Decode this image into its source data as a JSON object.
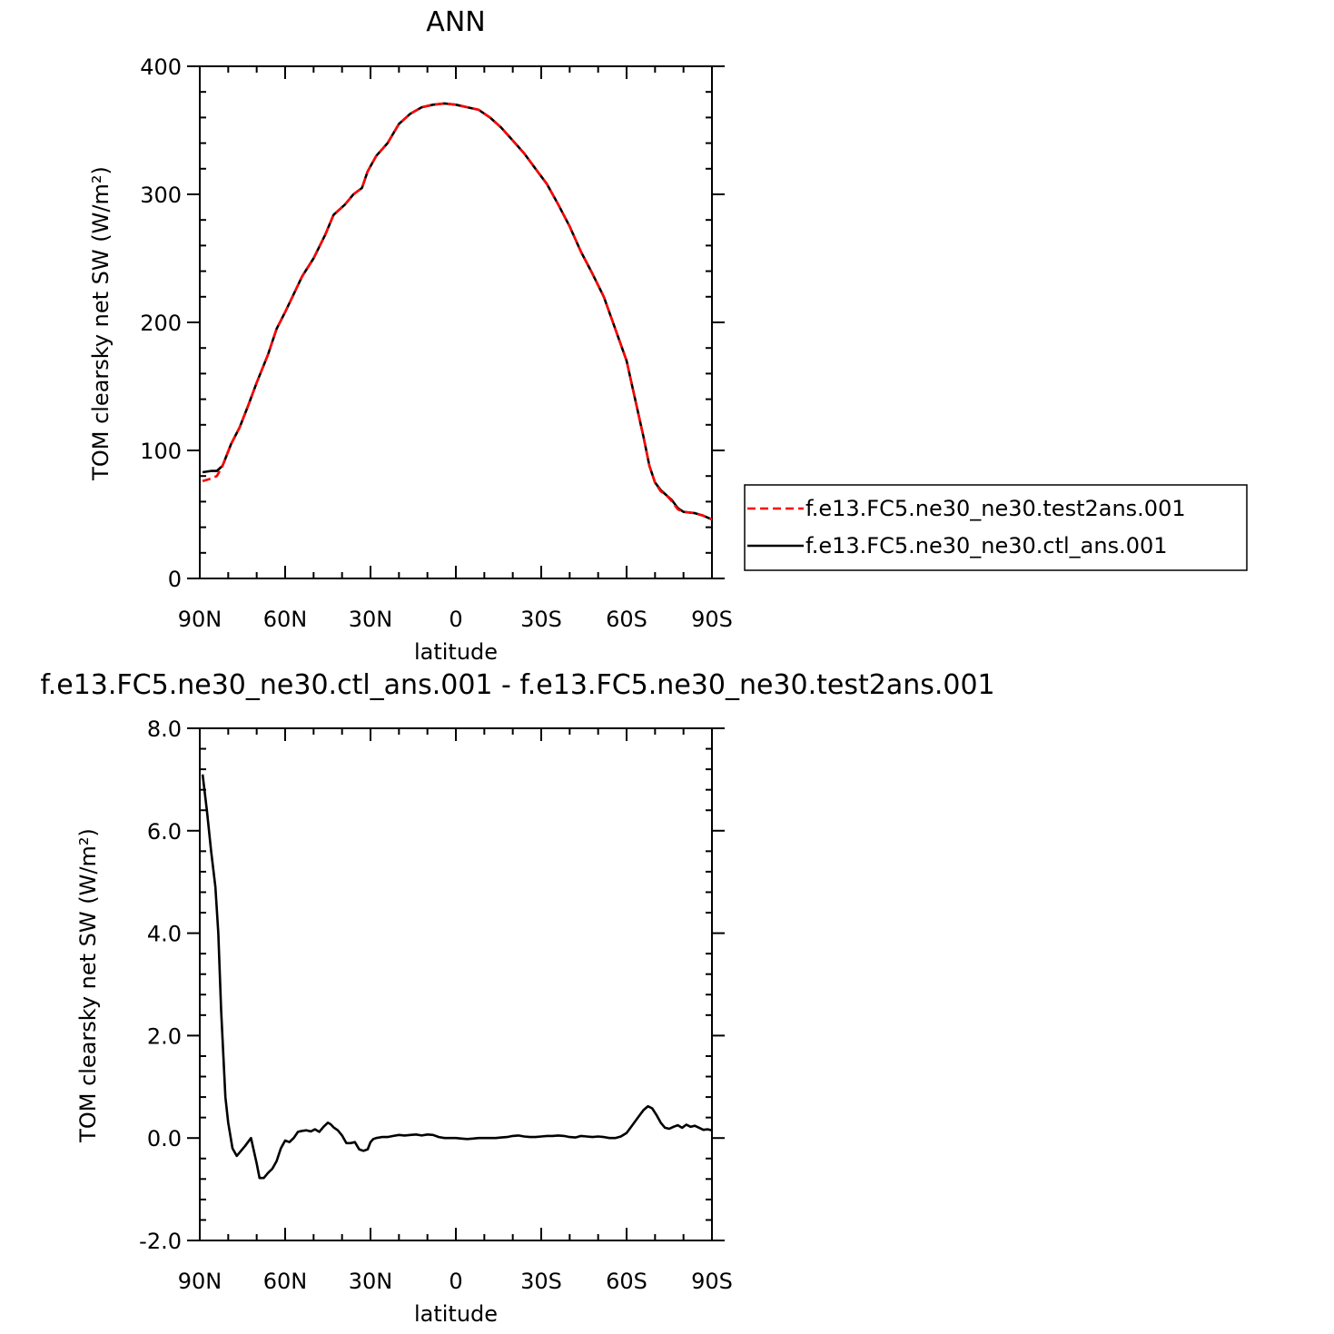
{
  "chart_data": [
    {
      "type": "line",
      "title": "ANN",
      "xlabel": "latitude",
      "ylabel": "TOM clearsky net SW (W/m²)",
      "xlim": [
        90,
        -90
      ],
      "ylim": [
        0,
        400
      ],
      "x_ticks": [
        90,
        60,
        30,
        0,
        -30,
        -60,
        -90
      ],
      "x_tick_labels": [
        "90N",
        "60N",
        "30N",
        "0",
        "30S",
        "60S",
        "90S"
      ],
      "y_ticks": [
        0,
        100,
        200,
        300,
        400
      ],
      "y_tick_labels": [
        "0",
        "100",
        "200",
        "300",
        "400"
      ],
      "legend_position": "right",
      "series": [
        {
          "name": "f.e13.FC5.ne30_ne30.test2ans.001",
          "color": "#ff0000",
          "dash": "dashed",
          "x": [
            89,
            86,
            84,
            82,
            79,
            76,
            73,
            70,
            66,
            63,
            60,
            57,
            54,
            50,
            46,
            43,
            39,
            36,
            33,
            31,
            28,
            24,
            20,
            16,
            12,
            8,
            4,
            0,
            -4,
            -8,
            -12,
            -16,
            -20,
            -24,
            -28,
            -32,
            -36,
            -40,
            -44,
            -48,
            -52,
            -56,
            -60,
            -63,
            -66,
            -68,
            -70,
            -72,
            -74,
            -76,
            -78,
            -80,
            -84,
            -87,
            -90
          ],
          "y": [
            76,
            78,
            80,
            88,
            105,
            118,
            135,
            153,
            175,
            195,
            208,
            222,
            236,
            250,
            268,
            284,
            292,
            300,
            305,
            318,
            330,
            340,
            355,
            363,
            368,
            370,
            371,
            370,
            368,
            366,
            360,
            352,
            342,
            332,
            320,
            308,
            292,
            275,
            255,
            238,
            220,
            195,
            170,
            140,
            110,
            88,
            75,
            68,
            65,
            60,
            54,
            52,
            51,
            49,
            46
          ]
        },
        {
          "name": "f.e13.FC5.ne30_ne30.ctl_ans.001",
          "color": "#000000",
          "dash": "solid",
          "x": [
            89,
            86,
            84,
            82,
            79,
            76,
            73,
            70,
            66,
            63,
            60,
            57,
            54,
            50,
            46,
            43,
            39,
            36,
            33,
            31,
            28,
            24,
            20,
            16,
            12,
            8,
            4,
            0,
            -4,
            -8,
            -12,
            -16,
            -20,
            -24,
            -28,
            -32,
            -36,
            -40,
            -44,
            -48,
            -52,
            -56,
            -60,
            -63,
            -66,
            -68,
            -70,
            -72,
            -74,
            -76,
            -78,
            -80,
            -84,
            -87,
            -90
          ],
          "y": [
            83,
            84,
            84,
            88,
            105,
            118,
            135,
            153,
            175,
            195,
            208,
            222,
            236,
            250,
            268,
            284,
            292,
            300,
            305,
            318,
            330,
            340,
            355,
            363,
            368,
            370,
            371,
            370,
            368,
            366,
            360,
            352,
            342,
            332,
            320,
            308,
            292,
            275,
            255,
            238,
            220,
            195,
            170,
            140,
            110,
            88,
            75,
            69,
            65,
            61,
            55,
            52,
            51,
            49,
            46
          ]
        }
      ]
    },
    {
      "type": "line",
      "title": "f.e13.FC5.ne30_ne30.ctl_ans.001 - f.e13.FC5.ne30_ne30.test2ans.001",
      "xlabel": "latitude",
      "ylabel": "TOM clearsky net SW (W/m²)",
      "xlim": [
        90,
        -90
      ],
      "ylim": [
        -2,
        8
      ],
      "x_ticks": [
        90,
        60,
        30,
        0,
        -30,
        -60,
        -90
      ],
      "x_tick_labels": [
        "90N",
        "60N",
        "30N",
        "0",
        "30S",
        "60S",
        "90S"
      ],
      "y_ticks": [
        -2,
        0,
        2,
        4,
        6,
        8
      ],
      "y_tick_labels": [
        "-2.0",
        "0.0",
        "2.0",
        "4.0",
        "6.0",
        "8.0"
      ],
      "series": [
        {
          "color": "#000000",
          "dash": "solid",
          "x": [
            89,
            87.5,
            86,
            84.5,
            83.5,
            82.5,
            81,
            80,
            78.5,
            77,
            75.5,
            74,
            72,
            70,
            69,
            67.5,
            66,
            64.5,
            63,
            61.5,
            60,
            58.5,
            57,
            55.5,
            54,
            52.5,
            51,
            49.5,
            48,
            46.5,
            45,
            44,
            43,
            41.5,
            40,
            38.5,
            37,
            35.5,
            34,
            32.5,
            31,
            30,
            29,
            28,
            26,
            24,
            22,
            20,
            18,
            16,
            14,
            12,
            10,
            8,
            6,
            4,
            2,
            0,
            -2,
            -4,
            -6,
            -8,
            -10,
            -12,
            -14,
            -16,
            -18,
            -20,
            -22,
            -24,
            -26,
            -28,
            -30,
            -32,
            -34,
            -36,
            -38,
            -40,
            -42,
            -44,
            -46,
            -48,
            -50,
            -52,
            -54,
            -56,
            -58,
            -60,
            -62,
            -64,
            -66,
            -67.5,
            -69,
            -70.5,
            -72,
            -73.5,
            -75,
            -76.5,
            -78,
            -79.5,
            -81,
            -82.5,
            -84,
            -85.5,
            -87,
            -88.5,
            -90
          ],
          "y": [
            7.1,
            6.4,
            5.6,
            4.9,
            4.0,
            2.5,
            0.8,
            0.3,
            -0.2,
            -0.35,
            -0.25,
            -0.15,
            0.0,
            -0.5,
            -0.78,
            -0.78,
            -0.68,
            -0.6,
            -0.45,
            -0.2,
            -0.05,
            -0.08,
            0.0,
            0.12,
            0.14,
            0.15,
            0.13,
            0.17,
            0.12,
            0.22,
            0.3,
            0.27,
            0.21,
            0.15,
            0.05,
            -0.1,
            -0.1,
            -0.08,
            -0.22,
            -0.25,
            -0.22,
            -0.08,
            -0.02,
            0.0,
            0.02,
            0.02,
            0.04,
            0.06,
            0.05,
            0.06,
            0.07,
            0.05,
            0.07,
            0.06,
            0.02,
            0.0,
            0.0,
            0.0,
            -0.01,
            -0.02,
            -0.01,
            0.0,
            0.0,
            0.0,
            0.0,
            0.01,
            0.02,
            0.04,
            0.05,
            0.03,
            0.02,
            0.02,
            0.03,
            0.04,
            0.04,
            0.05,
            0.04,
            0.02,
            0.01,
            0.04,
            0.03,
            0.02,
            0.03,
            0.02,
            0.0,
            0.0,
            0.03,
            0.1,
            0.25,
            0.4,
            0.55,
            0.62,
            0.58,
            0.45,
            0.3,
            0.2,
            0.18,
            0.22,
            0.25,
            0.2,
            0.26,
            0.22,
            0.24,
            0.2,
            0.16,
            0.17,
            0.15
          ]
        }
      ]
    }
  ]
}
